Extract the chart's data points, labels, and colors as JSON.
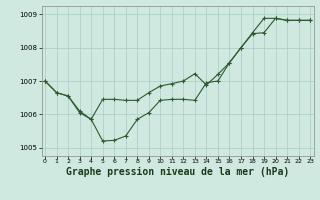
{
  "title": "Graphe pression niveau de la mer (hPa)",
  "hours": [
    0,
    1,
    2,
    3,
    4,
    5,
    6,
    7,
    8,
    9,
    10,
    11,
    12,
    13,
    14,
    15,
    16,
    17,
    18,
    19,
    20,
    21,
    22,
    23
  ],
  "line1": [
    1007.0,
    1006.65,
    1006.55,
    1006.05,
    1005.85,
    1005.2,
    1005.22,
    1005.35,
    1005.85,
    1006.05,
    1006.42,
    1006.45,
    1006.45,
    1006.42,
    1006.95,
    1007.0,
    1007.55,
    1008.0,
    1008.45,
    1008.88,
    1008.88,
    1008.82,
    1008.82,
    1008.82
  ],
  "line2": [
    1007.0,
    1006.65,
    1006.55,
    1006.1,
    1005.85,
    1006.45,
    1006.45,
    1006.42,
    1006.42,
    1006.65,
    1006.85,
    1006.92,
    1007.0,
    1007.22,
    1006.88,
    1007.2,
    1007.55,
    1008.0,
    1008.42,
    1008.45,
    1008.88,
    1008.82,
    1008.82,
    1008.82
  ],
  "ylim": [
    1004.75,
    1009.25
  ],
  "xlim": [
    -0.3,
    23.3
  ],
  "yticks": [
    1005,
    1006,
    1007,
    1008,
    1009
  ],
  "xticks": [
    0,
    1,
    2,
    3,
    4,
    5,
    6,
    7,
    8,
    9,
    10,
    11,
    12,
    13,
    14,
    15,
    16,
    17,
    18,
    19,
    20,
    21,
    22,
    23
  ],
  "bg_color": "#cfe8e0",
  "line_color": "#2d5a2d",
  "grid_color": "#a8ccc4",
  "title_color": "#1a3a1a",
  "title_fontsize": 7.0
}
